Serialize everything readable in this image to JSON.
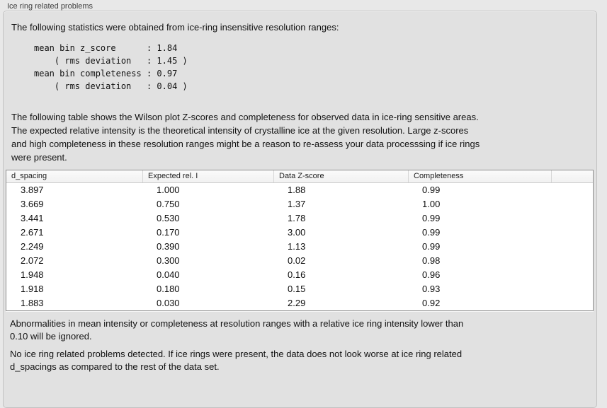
{
  "panel": {
    "title": "Ice ring related problems"
  },
  "intro": {
    "text": "The following statistics were obtained from ice-ring insensitive resolution ranges:",
    "stats_block": "mean bin z_score      : 1.84\n    ( rms deviation   : 1.45 )\nmean bin completeness : 0.97\n    ( rms deviation   : 0.04 )"
  },
  "table_intro": "The following table shows the Wilson plot Z-scores and completeness for observed data in ice-ring sensitive areas.\nThe expected relative intensity is the theoretical intensity of crystalline ice at the given resolution. Large z-scores\nand high completeness in these resolution ranges might be a reason to re-assess your data processsing if ice rings\nwere present.",
  "table": {
    "columns": [
      "d_spacing",
      "Expected rel. I",
      "Data Z-score",
      "Completeness",
      ""
    ],
    "rows": [
      [
        "3.897",
        "1.000",
        "1.88",
        "0.99"
      ],
      [
        "3.669",
        "0.750",
        "1.37",
        "1.00"
      ],
      [
        "3.441",
        "0.530",
        "1.78",
        "0.99"
      ],
      [
        "2.671",
        "0.170",
        "3.00",
        "0.99"
      ],
      [
        "2.249",
        "0.390",
        "1.13",
        "0.99"
      ],
      [
        "2.072",
        "0.300",
        "0.02",
        "0.98"
      ],
      [
        "1.948",
        "0.040",
        "0.16",
        "0.96"
      ],
      [
        "1.918",
        "0.180",
        "0.15",
        "0.93"
      ],
      [
        "1.883",
        "0.030",
        "2.29",
        "0.92"
      ]
    ]
  },
  "notes": {
    "ignore_rule": "Abnormalities in mean intensity or completeness at resolution ranges with a relative ice ring intensity lower than\n0.10 will be ignored.",
    "conclusion": "No ice ring related problems detected. If ice rings were present, the data does not look worse at ice ring related\nd_spacings as compared to the rest of the data set."
  },
  "colors": {
    "panel_background": "#e1e1e1",
    "page_background": "#e8e8e8",
    "table_border": "#8f8f8f",
    "header_background": "#f5f5f5"
  }
}
